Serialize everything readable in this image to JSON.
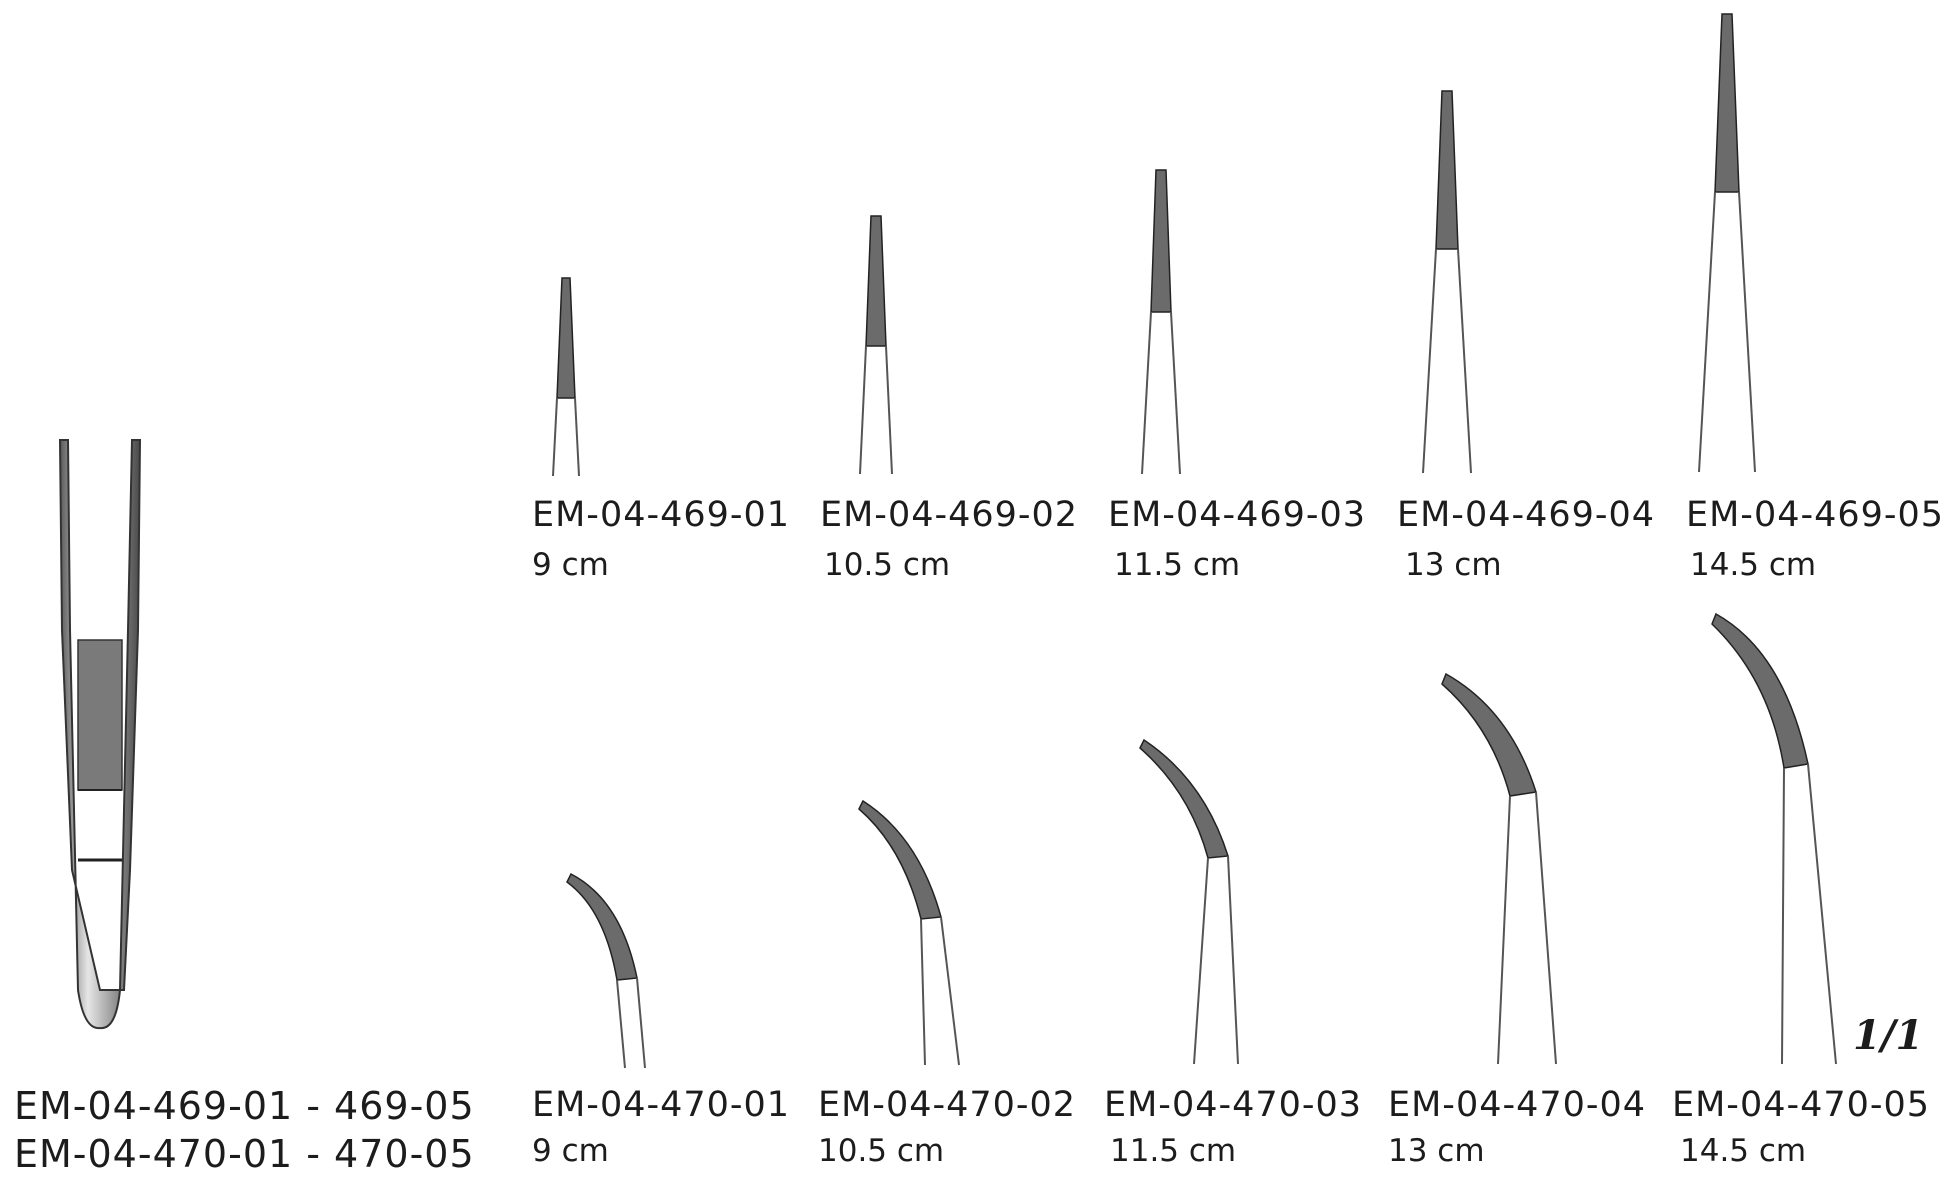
{
  "overview": {
    "ranges": [
      "EM-04-469-01 - 469-05",
      "EM-04-470-01 - 470-05"
    ]
  },
  "straight": [
    {
      "code": "EM-04-469-01",
      "size": "9 cm"
    },
    {
      "code": "EM-04-469-02",
      "size": "10.5 cm"
    },
    {
      "code": "EM-04-469-03",
      "size": "11.5 cm"
    },
    {
      "code": "EM-04-469-04",
      "size": "13 cm"
    },
    {
      "code": "EM-04-469-05",
      "size": "14.5 cm"
    }
  ],
  "curved": [
    {
      "code": "EM-04-470-01",
      "size": "9 cm"
    },
    {
      "code": "EM-04-470-02",
      "size": "10.5 cm"
    },
    {
      "code": "EM-04-470-03",
      "size": "11.5 cm"
    },
    {
      "code": "EM-04-470-04",
      "size": "13 cm"
    },
    {
      "code": "EM-04-470-05",
      "size": "14.5 cm"
    }
  ],
  "scale_mark": "1/1",
  "colors": {
    "ink": "#1c1c1c",
    "steel": "#9a9a9a",
    "serration": "#6b6b6b"
  }
}
